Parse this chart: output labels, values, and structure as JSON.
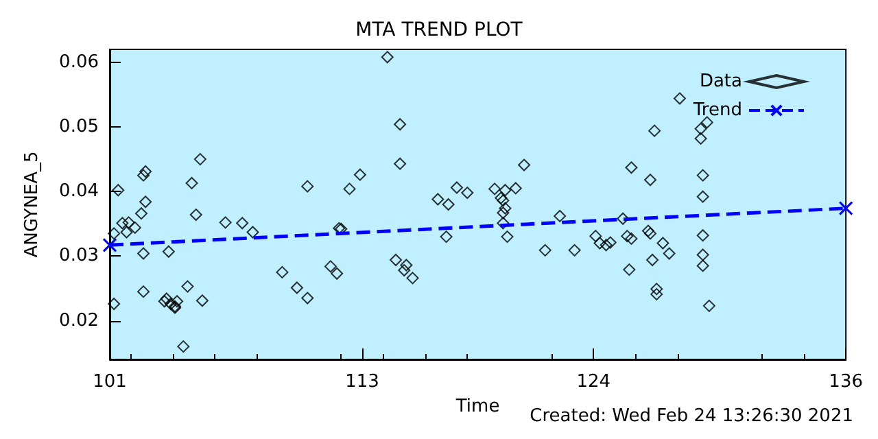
{
  "chart_data": {
    "type": "scatter",
    "title": "MTA TREND PLOT",
    "xlabel": "Time",
    "ylabel": "ANGYNEA_5",
    "annotations": [
      "Created: Wed Feb 24 13:26:30 2021"
    ],
    "xlim": [
      101,
      136
    ],
    "xticks": [
      101,
      113,
      124,
      136
    ],
    "ylim": [
      0.014,
      0.062
    ],
    "yticks": [
      0.02,
      0.03,
      0.04,
      0.05,
      0.06
    ],
    "grid": false,
    "legend": "top right",
    "series": [
      {
        "name": "Data",
        "marker": "diamond",
        "color": "#000000",
        "x": [
          101.2,
          101.4,
          101.2,
          101.6,
          101.9,
          101.8,
          102.2,
          102.5,
          102.7,
          102.6,
          102.7,
          102.6,
          102.6,
          103.8,
          103.7,
          103.6,
          103.9,
          104.1,
          104.2,
          104.1,
          104.7,
          104.5,
          104.9,
          105.3,
          105.1,
          105.4,
          106.5,
          107.3,
          107.8,
          109.2,
          109.9,
          110.4,
          110.4,
          114.2,
          114.8,
          114.8,
          112.9,
          112.4,
          111.9,
          112.0,
          111.5,
          111.8,
          114.6,
          115.1,
          115.0,
          115.4,
          116.6,
          117.1,
          117.5,
          118.0,
          117.0,
          119.3,
          119.6,
          119.7,
          119.8,
          119.8,
          119.7,
          119.7,
          119.9,
          120.3,
          120.7,
          121.7,
          122.4,
          123.1,
          124.1,
          124.3,
          124.6,
          124.8,
          125.4,
          125.6,
          125.8,
          125.7,
          125.8,
          126.6,
          126.7,
          126.7,
          126.8,
          126.9,
          127.3,
          127.6,
          127.0,
          127.0,
          128.1,
          129.1,
          129.4,
          129.1,
          129.2,
          129.2,
          129.2,
          129.2,
          129.2,
          129.5
        ],
        "values": [
          0.0226,
          0.0402,
          0.0335,
          0.0351,
          0.0352,
          0.0337,
          0.0344,
          0.0366,
          0.0384,
          0.0425,
          0.0431,
          0.0304,
          0.0245,
          0.0307,
          0.0234,
          0.023,
          0.0226,
          0.022,
          0.023,
          0.0222,
          0.0253,
          0.016,
          0.0413,
          0.045,
          0.0364,
          0.0231,
          0.0352,
          0.0351,
          0.0337,
          0.0275,
          0.0251,
          0.0235,
          0.0408,
          0.0608,
          0.0504,
          0.0443,
          0.0426,
          0.0404,
          0.0343,
          0.0342,
          0.0284,
          0.0273,
          0.0294,
          0.0286,
          0.0278,
          0.0266,
          0.0388,
          0.038,
          0.0406,
          0.0398,
          0.033,
          0.0404,
          0.039,
          0.0386,
          0.0402,
          0.0374,
          0.0367,
          0.0351,
          0.033,
          0.0405,
          0.0441,
          0.0309,
          0.0362,
          0.0309,
          0.0331,
          0.032,
          0.0317,
          0.0321,
          0.0358,
          0.0331,
          0.0327,
          0.0279,
          0.0437,
          0.0339,
          0.0335,
          0.0418,
          0.0294,
          0.0494,
          0.032,
          0.0304,
          0.0249,
          0.0241,
          0.0544,
          0.0497,
          0.0507,
          0.0482,
          0.0425,
          0.0392,
          0.0332,
          0.0302,
          0.0285,
          0.0223
        ]
      },
      {
        "name": "Trend",
        "type": "line",
        "marker": "cross",
        "line_style": "dashed",
        "color": "#0000ff",
        "x": [
          101,
          136
        ],
        "values": [
          0.0317,
          0.0374
        ]
      }
    ]
  }
}
